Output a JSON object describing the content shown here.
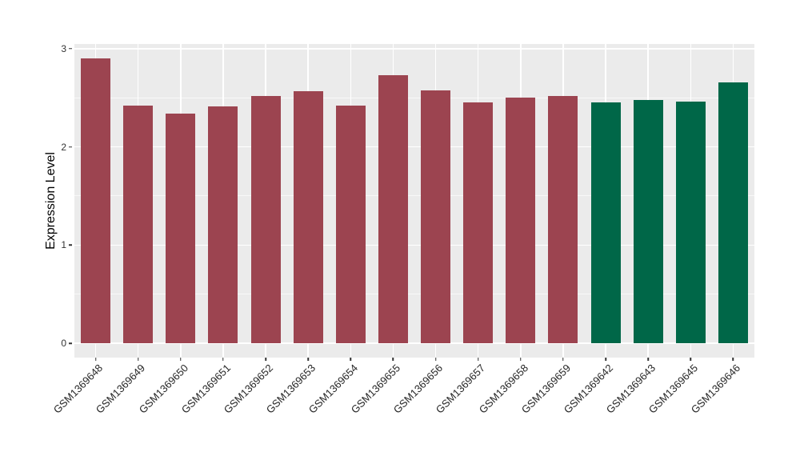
{
  "figure": {
    "background": "#FFFFFF"
  },
  "chart_data": {
    "type": "bar",
    "title": "",
    "xlabel": "",
    "ylabel": "Expression Level",
    "ylim": [
      0,
      3.05
    ],
    "yticks": [
      0,
      1,
      2,
      3
    ],
    "minor_gridlines": [
      0.5,
      1.5,
      2.5
    ],
    "grid": "on",
    "legend_position": "none",
    "panel_background": "#EBEBEB",
    "gridline_color": "#FFFFFF",
    "axis_tick_color": "#333333",
    "bar_group_colors": {
      "group1": "#9C4450",
      "group2": "#006748"
    },
    "categories": [
      "GSM1369648",
      "GSM1369649",
      "GSM1369650",
      "GSM1369651",
      "GSM1369652",
      "GSM1369653",
      "GSM1369654",
      "GSM1369655",
      "GSM1369656",
      "GSM1369657",
      "GSM1369658",
      "GSM1369659",
      "GSM1369642",
      "GSM1369643",
      "GSM1369645",
      "GSM1369646"
    ],
    "values": [
      2.9,
      2.42,
      2.34,
      2.41,
      2.52,
      2.57,
      2.42,
      2.73,
      2.58,
      2.45,
      2.5,
      2.52,
      2.45,
      2.48,
      2.46,
      2.66
    ],
    "bars": [
      {
        "label": "GSM1369648",
        "value": 2.9,
        "color": "#9C4450"
      },
      {
        "label": "GSM1369649",
        "value": 2.42,
        "color": "#9C4450"
      },
      {
        "label": "GSM1369650",
        "value": 2.34,
        "color": "#9C4450"
      },
      {
        "label": "GSM1369651",
        "value": 2.41,
        "color": "#9C4450"
      },
      {
        "label": "GSM1369652",
        "value": 2.52,
        "color": "#9C4450"
      },
      {
        "label": "GSM1369653",
        "value": 2.57,
        "color": "#9C4450"
      },
      {
        "label": "GSM1369654",
        "value": 2.42,
        "color": "#9C4450"
      },
      {
        "label": "GSM1369655",
        "value": 2.73,
        "color": "#9C4450"
      },
      {
        "label": "GSM1369656",
        "value": 2.58,
        "color": "#9C4450"
      },
      {
        "label": "GSM1369657",
        "value": 2.45,
        "color": "#9C4450"
      },
      {
        "label": "GSM1369658",
        "value": 2.5,
        "color": "#9C4450"
      },
      {
        "label": "GSM1369659",
        "value": 2.52,
        "color": "#9C4450"
      },
      {
        "label": "GSM1369642",
        "value": 2.45,
        "color": "#006748"
      },
      {
        "label": "GSM1369643",
        "value": 2.48,
        "color": "#006748"
      },
      {
        "label": "GSM1369645",
        "value": 2.46,
        "color": "#006748"
      },
      {
        "label": "GSM1369646",
        "value": 2.66,
        "color": "#006748"
      }
    ]
  }
}
